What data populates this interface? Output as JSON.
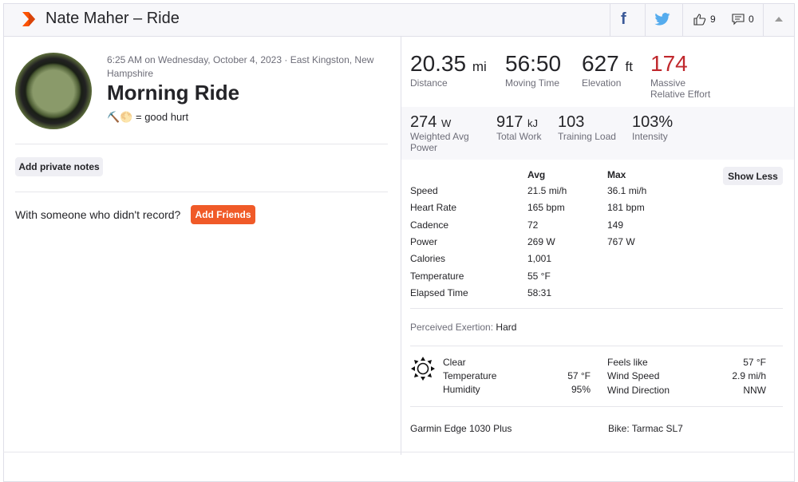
{
  "header": {
    "title": "Nate Maher – Ride",
    "kudos_count": "9",
    "comment_count": "0",
    "icons": [
      "strava-chevron-icon",
      "facebook-icon",
      "twitter-icon",
      "thumbs-up-icon",
      "comment-icon",
      "caret-up-icon"
    ]
  },
  "activity": {
    "datetime_location": "6:25 AM on Wednesday, October 4, 2023 · East Kingston, New Hampshire",
    "name": "Morning Ride",
    "description": "⛏️🌕 = good hurt",
    "add_notes_label": "Add private notes",
    "with_someone_text": "With someone who didn't record?",
    "add_friends_label": "Add Friends"
  },
  "primary_stats": [
    {
      "value": "20.35",
      "unit": "mi",
      "label": "Distance"
    },
    {
      "value": "56:50",
      "unit": "",
      "label": "Moving Time"
    },
    {
      "value": "627",
      "unit": "ft",
      "label": "Elevation"
    },
    {
      "value": "174",
      "unit": "",
      "label": "Massive Relative Effort",
      "color": "#c0282d"
    }
  ],
  "secondary_stats": [
    {
      "value": "274",
      "unit": "W",
      "label": "Weighted Avg Power"
    },
    {
      "value": "917",
      "unit": "kJ",
      "label": "Total Work"
    },
    {
      "value": "103",
      "unit": "",
      "label": "Training Load"
    },
    {
      "value": "103%",
      "unit": "",
      "label": "Intensity"
    }
  ],
  "table": {
    "avg_header": "Avg",
    "max_header": "Max",
    "show_less_label": "Show Less",
    "rows": [
      {
        "label": "Speed",
        "avg": "21.5 mi/h",
        "max": "36.1 mi/h"
      },
      {
        "label": "Heart Rate",
        "avg": "165 bpm",
        "max": "181 bpm"
      },
      {
        "label": "Cadence",
        "avg": "72",
        "max": "149"
      },
      {
        "label": "Power",
        "avg": "269 W",
        "max": "767 W"
      },
      {
        "label": "Calories",
        "avg": "1,001",
        "max": ""
      },
      {
        "label": "Temperature",
        "avg": "55 °F",
        "max": ""
      },
      {
        "label": "Elapsed Time",
        "avg": "58:31",
        "max": ""
      }
    ]
  },
  "perceived": {
    "label": "Perceived Exertion:",
    "value": "Hard"
  },
  "weather": {
    "icon": "sun-icon",
    "condition": "Clear",
    "left": [
      {
        "label": "Temperature",
        "value": "57 °F"
      },
      {
        "label": "Humidity",
        "value": "95%"
      }
    ],
    "right": [
      {
        "label": "Feels like",
        "value": "57 °F"
      },
      {
        "label": "Wind Speed",
        "value": "2.9 mi/h"
      },
      {
        "label": "Wind Direction",
        "value": "NNW"
      }
    ]
  },
  "device": "Garmin Edge 1030 Plus",
  "bike": "Bike: Tarmac SL7",
  "colors": {
    "brand": "#fc5200",
    "effort": "#c0282d",
    "facebook": "#3b5998",
    "twitter": "#55acee"
  }
}
